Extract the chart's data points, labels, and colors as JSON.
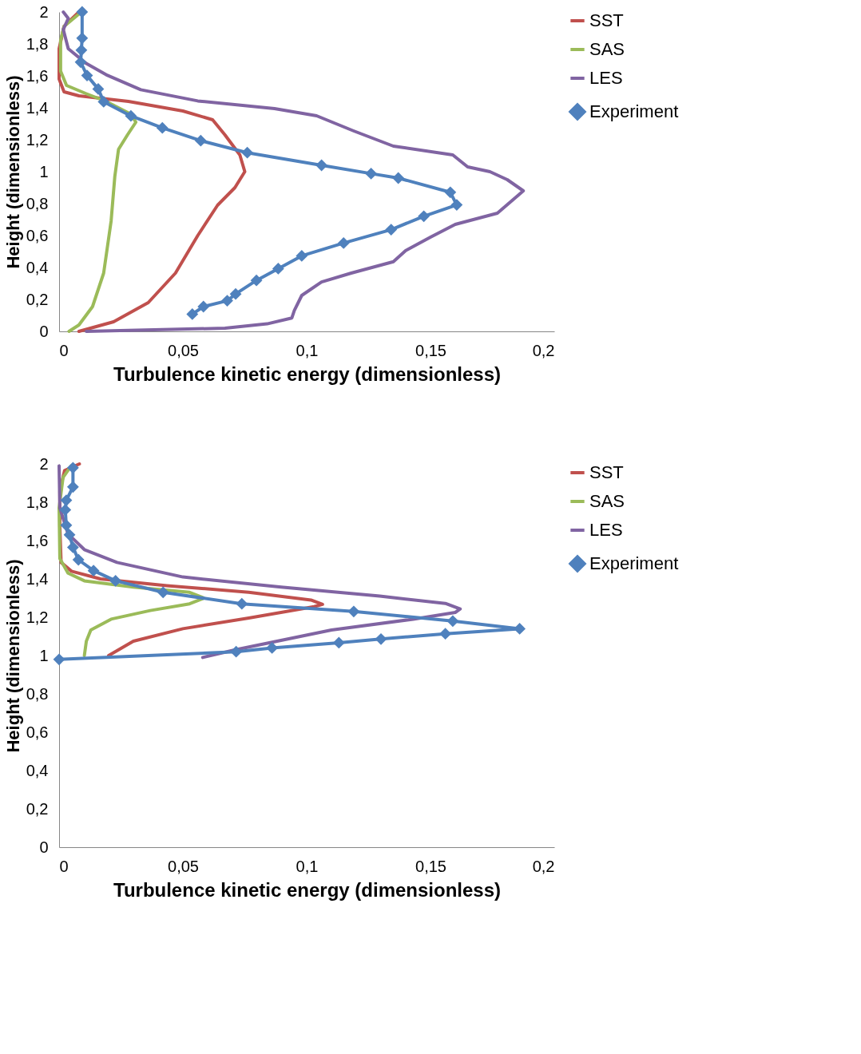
{
  "chart_data": [
    {
      "type": "line",
      "xlabel": "Turbulence kinetic energy (dimensionless)",
      "ylabel": "Height (dimensionless)",
      "legend": "right",
      "grid": false,
      "xlim": [
        0,
        0.2
      ],
      "xticks": [
        0,
        {
          "value": 0.05,
          "label": "0,05"
        },
        {
          "value": 0.1,
          "label": "0,1"
        },
        {
          "value": 0.15,
          "label": "0,15"
        },
        {
          "value": 0.2,
          "label": "0,2"
        }
      ],
      "ylim": [
        0,
        2
      ],
      "yticks": [
        0,
        {
          "value": 0.2,
          "label": "0,2"
        },
        {
          "value": 0.4,
          "label": "0,4"
        },
        {
          "value": 0.6,
          "label": "0,6"
        },
        {
          "value": 0.8,
          "label": "0,8"
        },
        1,
        {
          "value": 1.2,
          "label": "1,2"
        },
        {
          "value": 1.4,
          "label": "1,4"
        },
        {
          "value": 1.6,
          "label": "1,6"
        },
        {
          "value": 1.8,
          "label": "1,8"
        },
        2
      ],
      "series": [
        {
          "name": "SST",
          "color": "#c0504d",
          "marker": "none",
          "x": [
            0.008,
            0.022,
            0.036,
            0.047,
            0.056,
            0.064,
            0.071,
            0.075,
            0.073,
            0.067,
            0.062,
            0.05,
            0.028,
            0.008,
            0.002,
            0,
            0,
            0.002,
            0.008
          ],
          "values": [
            0,
            0.06,
            0.18,
            0.365,
            0.6,
            0.79,
            0.9,
            1.0,
            1.105,
            1.23,
            1.325,
            1.38,
            1.44,
            1.475,
            1.5,
            1.58,
            1.77,
            1.91,
            2.0
          ]
        },
        {
          "name": "SAS",
          "color": "#9bbb59",
          "marker": "none",
          "x": [
            0.004,
            0.008,
            0.0135,
            0.018,
            0.021,
            0.0225,
            0.024,
            0.0276,
            0.031,
            0.029,
            0.019,
            0.0107,
            0.003,
            0.0006,
            0.0006,
            0.002,
            0.009
          ],
          "values": [
            0,
            0.04,
            0.155,
            0.365,
            0.69,
            0.97,
            1.14,
            1.23,
            1.31,
            1.36,
            1.44,
            1.49,
            1.54,
            1.63,
            1.82,
            1.91,
            2.0
          ]
        },
        {
          "name": "LES",
          "color": "#8064a2",
          "marker": "none",
          "x": [
            0.011,
            0.067,
            0.084,
            0.094,
            0.095,
            0.098,
            0.106,
            0.118,
            0.135,
            0.14,
            0.15,
            0.16,
            0.177,
            0.1875,
            0.181,
            0.174,
            0.165,
            0.159,
            0.135,
            0.119,
            0.104,
            0.087,
            0.056,
            0.033,
            0.019,
            0.011,
            0.0037,
            0.0017,
            0.0037,
            0.0017
          ],
          "values": [
            0,
            0.02,
            0.047,
            0.084,
            0.131,
            0.225,
            0.309,
            0.365,
            0.436,
            0.506,
            0.59,
            0.67,
            0.74,
            0.88,
            0.95,
            1.0,
            1.03,
            1.105,
            1.16,
            1.255,
            1.35,
            1.395,
            1.443,
            1.513,
            1.607,
            1.677,
            1.77,
            1.89,
            1.96,
            2.0
          ]
        },
        {
          "name": "Experiment",
          "color": "#4f81bd",
          "marker": "diamond",
          "x": [
            0.0093,
            0.0093,
            0.009,
            0.0087,
            0.0113,
            0.0158,
            0.018,
            0.029,
            0.0417,
            0.0572,
            0.076,
            0.106,
            0.126,
            0.137,
            0.158,
            0.1606,
            0.1473,
            0.1341,
            0.1149,
            0.098,
            0.0885,
            0.0797,
            0.0713,
            0.0679,
            0.0583,
            0.0538
          ],
          "values": [
            2.0,
            1.836,
            1.761,
            1.686,
            1.602,
            1.518,
            1.438,
            1.349,
            1.274,
            1.194,
            1.119,
            1.04,
            0.988,
            0.96,
            0.871,
            0.792,
            0.721,
            0.637,
            0.553,
            0.473,
            0.393,
            0.319,
            0.234,
            0.192,
            0.155,
            0.108
          ]
        }
      ]
    },
    {
      "type": "line",
      "xlabel": "Turbulence kinetic energy (dimensionless)",
      "ylabel": "Height (dimensionless)",
      "legend": "right",
      "grid": false,
      "xlim": [
        0,
        0.2
      ],
      "xticks": [
        0,
        {
          "value": 0.05,
          "label": "0,05"
        },
        {
          "value": 0.1,
          "label": "0,1"
        },
        {
          "value": 0.15,
          "label": "0,15"
        },
        {
          "value": 0.2,
          "label": "0,2"
        }
      ],
      "ylim": [
        0,
        2
      ],
      "yticks": [
        0,
        {
          "value": 0.2,
          "label": "0,2"
        },
        {
          "value": 0.4,
          "label": "0,4"
        },
        {
          "value": 0.6,
          "label": "0,6"
        },
        {
          "value": 0.8,
          "label": "0,8"
        },
        1,
        {
          "value": 1.2,
          "label": "1,2"
        },
        {
          "value": 1.4,
          "label": "1,4"
        },
        {
          "value": 1.6,
          "label": "1,6"
        },
        {
          "value": 1.8,
          "label": "1,8"
        },
        2
      ],
      "series": [
        {
          "name": "SST",
          "color": "#c0504d",
          "marker": "none",
          "x": [
            0.02,
            0.03,
            0.05,
            0.0766,
            0.103,
            0.1064,
            0.1017,
            0.0766,
            0.0435,
            0.0167,
            0.005,
            0.0008,
            0.0003,
            0.0003,
            0.0022,
            0.0082
          ],
          "values": [
            1.0,
            1.075,
            1.14,
            1.196,
            1.255,
            1.267,
            1.29,
            1.33,
            1.365,
            1.4,
            1.44,
            1.486,
            1.675,
            1.86,
            1.965,
            2.0
          ]
        },
        {
          "name": "SAS",
          "color": "#9bbb59",
          "marker": "none",
          "x": [
            0.0102,
            0.011,
            0.0128,
            0.021,
            0.0368,
            0.0527,
            0.0585,
            0.0527,
            0.03,
            0.0102,
            0.0036,
            0.0003,
            0,
            0.0016,
            0.0049
          ],
          "values": [
            1.0,
            1.075,
            1.133,
            1.19,
            1.235,
            1.27,
            1.3,
            1.33,
            1.357,
            1.39,
            1.43,
            1.506,
            1.77,
            1.93,
            1.99
          ]
        },
        {
          "name": "LES",
          "color": "#8064a2",
          "marker": "none",
          "x": [
            0.058,
            0.0712,
            0.11,
            0.143,
            0.16,
            0.162,
            0.156,
            0.1295,
            0.0897,
            0.05,
            0.0234,
            0.0102,
            0.0036,
            0.0003,
            0
          ],
          "values": [
            0.99,
            1.03,
            1.133,
            1.19,
            1.225,
            1.243,
            1.272,
            1.31,
            1.357,
            1.41,
            1.486,
            1.553,
            1.635,
            1.77,
            1.99
          ]
        },
        {
          "name": "Experiment",
          "color": "#4f81bd",
          "marker": "diamond",
          "x": [
            0,
            0.0715,
            0.086,
            0.113,
            0.13,
            0.156,
            0.186,
            0.159,
            0.119,
            0.0738,
            0.042,
            0.0228,
            0.0139,
            0.0078,
            0.0056,
            0.0042,
            0.0029,
            0.0025,
            0.0029,
            0.0056,
            0.0056
          ],
          "values": [
            0.98,
            1.02,
            1.04,
            1.067,
            1.086,
            1.114,
            1.14,
            1.18,
            1.23,
            1.27,
            1.33,
            1.39,
            1.443,
            1.5,
            1.565,
            1.63,
            1.68,
            1.76,
            1.81,
            1.88,
            1.98
          ]
        }
      ]
    }
  ]
}
